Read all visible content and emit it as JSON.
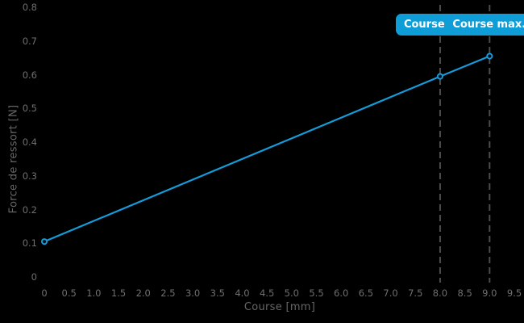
{
  "colors": {
    "background": "#000000",
    "line": "#159bd9",
    "marker_fill": "#04131d",
    "badge": "#0f9dd8",
    "badge_text": "#ffffff",
    "guide_line": "#4d4d4d",
    "tick_text": "#6f6f6f",
    "axis_title_text": "#666666"
  },
  "chart_data": {
    "type": "line",
    "title": "",
    "xlabel": "Course [mm]",
    "ylabel": "Force de ressort [N]",
    "xlim": [
      0,
      9.5
    ],
    "ylim": [
      0,
      0.8
    ],
    "grid": false,
    "legend_position": "none",
    "x_ticks": [
      0,
      0.5,
      1.0,
      1.5,
      2.0,
      2.5,
      3.0,
      3.5,
      4.0,
      4.5,
      5.0,
      5.5,
      6.0,
      6.5,
      7.0,
      7.5,
      8.0,
      8.5,
      9.0,
      9.5
    ],
    "x_tick_labels": [
      "0",
      "0.5",
      "1.0",
      "1.5",
      "2.0",
      "2.5",
      "3.0",
      "3.5",
      "4.0",
      "4.5",
      "5.0",
      "5.5",
      "6.0",
      "6.5",
      "7.0",
      "7.5",
      "8.0",
      "8.5",
      "9.0",
      "9.5"
    ],
    "y_ticks": [
      0,
      0.1,
      0.2,
      0.3,
      0.4,
      0.5,
      0.6,
      0.7,
      0.8
    ],
    "y_tick_labels": [
      "0",
      "0.1",
      "0.2",
      "0.3",
      "0.4",
      "0.5",
      "0.6",
      "0.7",
      "0.8"
    ],
    "series": [
      {
        "name": "force-de-ressort",
        "color": "#159bd9",
        "points": [
          [
            0,
            0.105
          ],
          [
            8,
            0.595
          ],
          [
            9,
            0.655
          ]
        ]
      }
    ],
    "guides": [
      {
        "x": 8.0,
        "label": "Course de",
        "style": "dashed"
      },
      {
        "x": 9.0,
        "label": "Course max.",
        "style": "dashed"
      }
    ]
  }
}
